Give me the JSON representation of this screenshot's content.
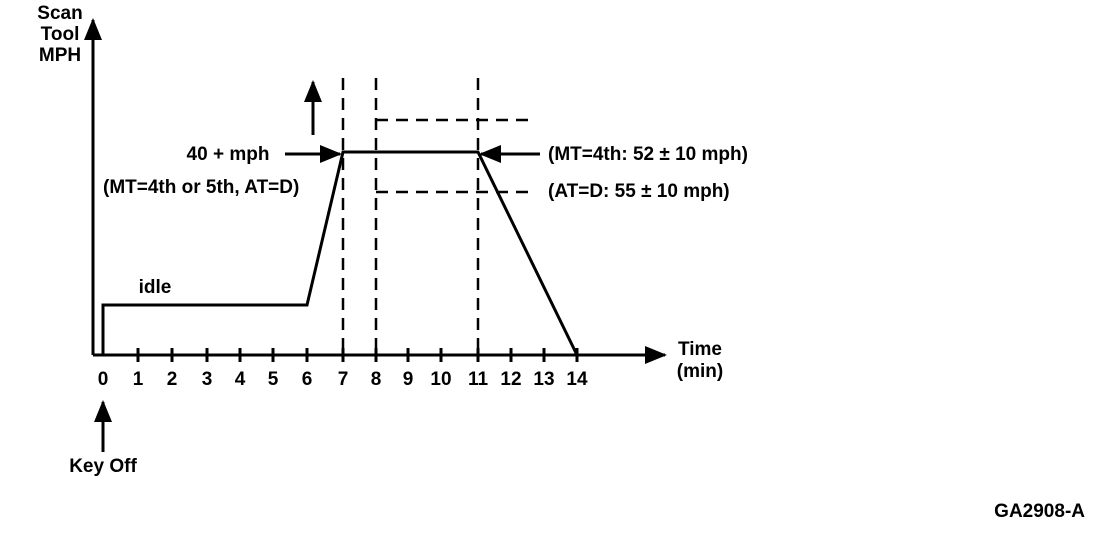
{
  "axis_label": {
    "y": [
      "Scan",
      "Tool",
      "MPH"
    ],
    "x": [
      "Time",
      "(min)"
    ]
  },
  "x_ticks": [
    "0",
    "1",
    "2",
    "3",
    "4",
    "5",
    "6",
    "7",
    "8",
    "9",
    "10",
    "11",
    "12",
    "13",
    "14"
  ],
  "annotations": {
    "speed_target": "40 + mph",
    "gear_note": "(MT=4th or 5th, AT=D)",
    "idle": "idle",
    "mt_speed": "(MT=4th: 52 ± 10 mph)",
    "at_speed": "(AT=D: 55 ± 10 mph)",
    "key_off": "Key Off"
  },
  "figure_id": "GA2908-A"
}
